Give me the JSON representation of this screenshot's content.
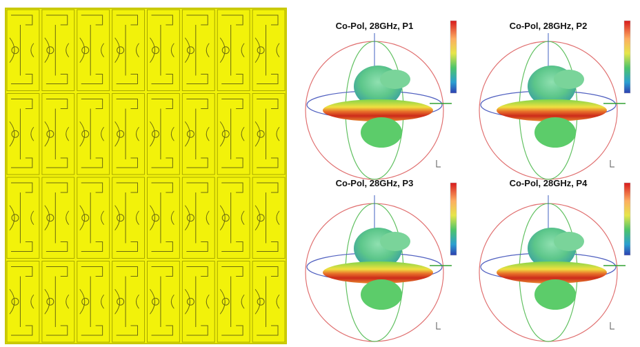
{
  "panels": [
    {
      "title": "Co-Pol, 28GHz, P1"
    },
    {
      "title": "Co-Pol, 28GHz, P2"
    },
    {
      "title": "Co-Pol, 28GHz, P3"
    },
    {
      "title": "Co-Pol, 28GHz, P4"
    }
  ]
}
